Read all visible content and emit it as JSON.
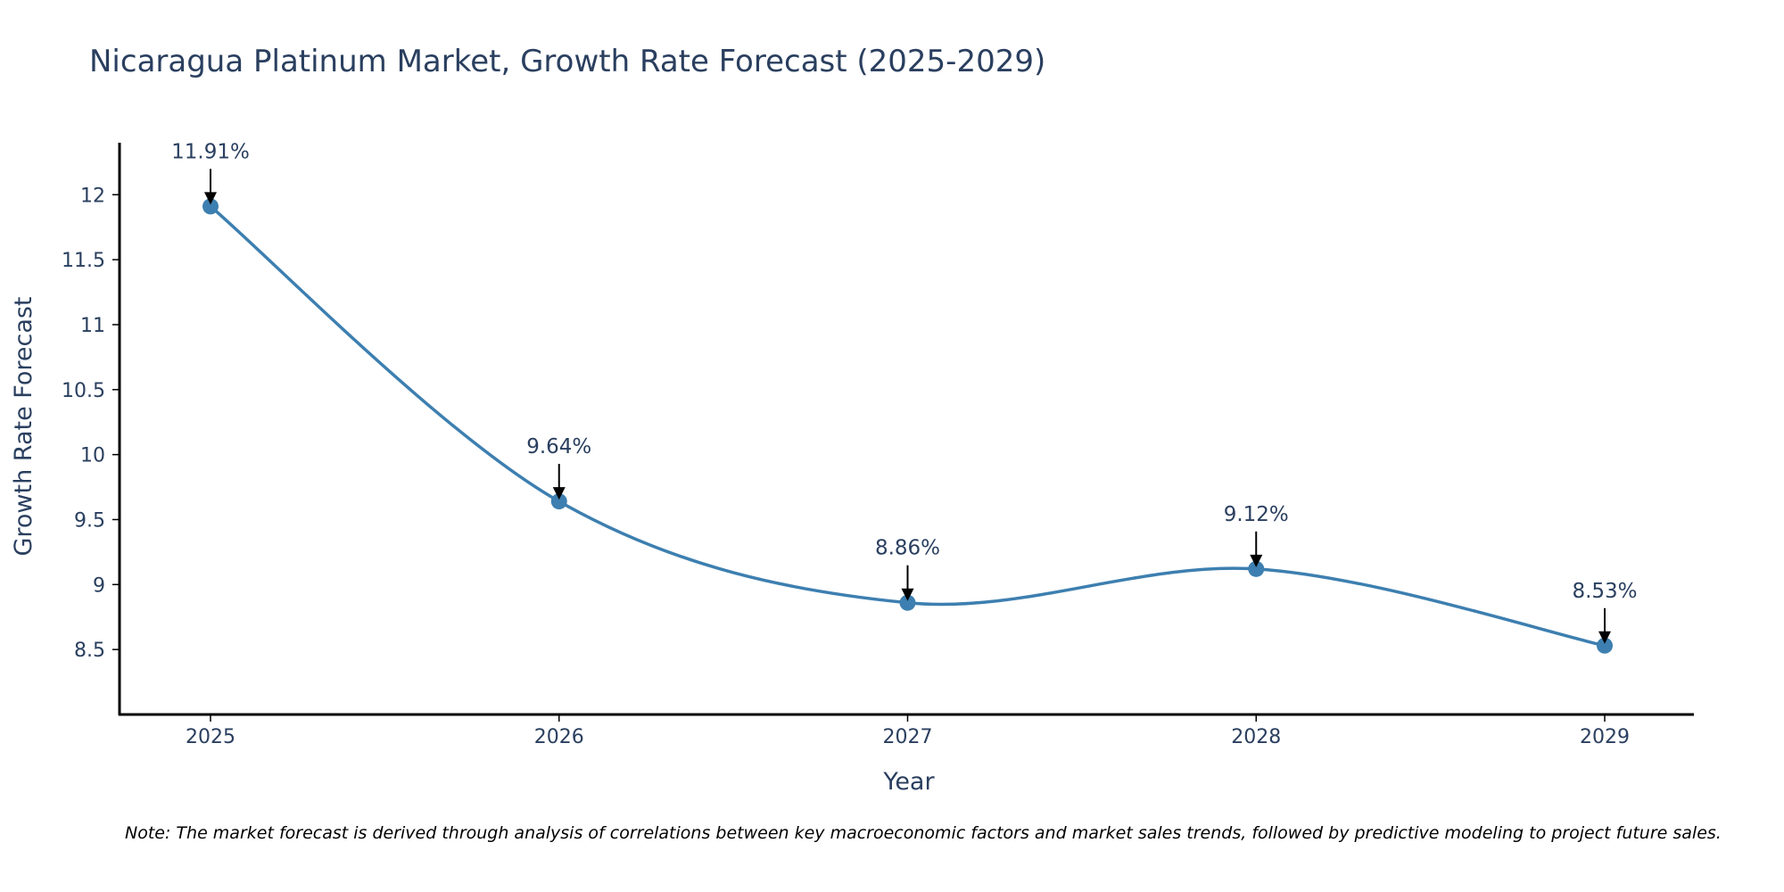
{
  "chart_data": {
    "type": "line",
    "title": "Nicaragua Platinum Market, Growth Rate Forecast (2025-2029)",
    "xlabel": "Year",
    "ylabel": "Growth Rate Forecast",
    "categories": [
      "2025",
      "2026",
      "2027",
      "2028",
      "2029"
    ],
    "values": [
      11.91,
      9.64,
      8.86,
      9.12,
      8.53
    ],
    "data_labels": [
      "11.91%",
      "9.64%",
      "8.86%",
      "9.12%",
      "8.53%"
    ],
    "ylim": [
      8.0,
      12.4
    ],
    "yticks": [
      8.5,
      9,
      9.5,
      10,
      10.5,
      11,
      11.5,
      12
    ],
    "ytick_labels": [
      "8.5",
      "9",
      "9.5",
      "10",
      "10.5",
      "11",
      "11.5",
      "12"
    ],
    "grid": false,
    "line_shape": "spline",
    "line_color": "#3d7fb0",
    "marker_color": "#3d7fb0",
    "note": "Note: The market forecast is derived through analysis of correlations between key macroeconomic factors and market sales trends, followed by predictive modeling to project future sales."
  }
}
